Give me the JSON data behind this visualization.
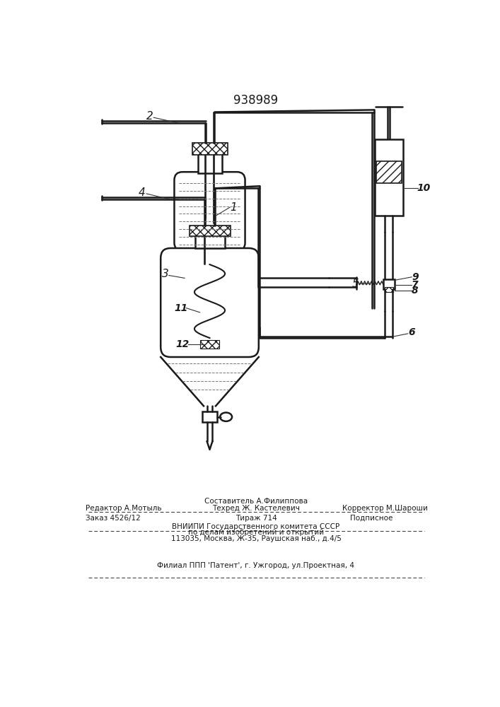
{
  "patent_num": "938989",
  "bg_color": "#ffffff",
  "lc": "#1a1a1a",
  "footer": {
    "line1_center": "Составитель А.Филиппова",
    "line2_left": "Редактор А.Мотыль",
    "line2_center": "Техред Ж. Кастелевич",
    "line2_right": "Корректор М.Шароши",
    "line3_left": "Заказ 4526/12",
    "line3_center": "Тираж 714",
    "line3_right": "Подписное",
    "line4": "ВНИИПИ Государственного комитета СССР",
    "line5": "по делам изобретений и открытий",
    "line6": "113035, Москва, Ж-35, Раушская наб., д.4/5",
    "line7": "Филиал ППП 'Патент', г. Ужгород, ул.Проектная, 4"
  }
}
